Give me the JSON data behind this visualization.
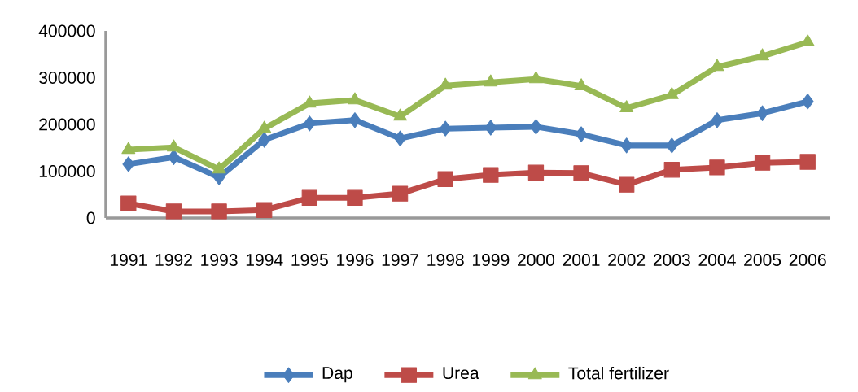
{
  "chart_data": {
    "type": "line",
    "categories": [
      "1991",
      "1992",
      "1993",
      "1994",
      "1995",
      "1996",
      "1997",
      "1998",
      "1999",
      "2000",
      "2001",
      "2002",
      "2003",
      "2004",
      "2005",
      "2006"
    ],
    "series": [
      {
        "name": "Dap",
        "color": "#4a7ebb",
        "marker": "diamond",
        "values": [
          115000,
          130000,
          87000,
          167000,
          202000,
          209000,
          170000,
          191000,
          193000,
          195000,
          179000,
          155000,
          155000,
          209000,
          224000,
          249000
        ]
      },
      {
        "name": "Urea",
        "color": "#be4b48",
        "marker": "square",
        "values": [
          31000,
          14000,
          14000,
          17000,
          43000,
          43000,
          52000,
          83000,
          92000,
          97000,
          96000,
          71000,
          103000,
          108000,
          118000,
          120000
        ]
      },
      {
        "name": "Total fertilizer",
        "color": "#98b954",
        "marker": "triangle",
        "values": [
          146000,
          151000,
          104000,
          191000,
          245000,
          252000,
          217000,
          283000,
          290000,
          297000,
          282000,
          235000,
          263000,
          323000,
          346000,
          376000
        ]
      }
    ],
    "ylim": [
      0,
      400000
    ],
    "yticks": [
      0,
      100000,
      200000,
      300000,
      400000
    ],
    "grid": false,
    "legend": "bottom",
    "line_style": "solid"
  }
}
